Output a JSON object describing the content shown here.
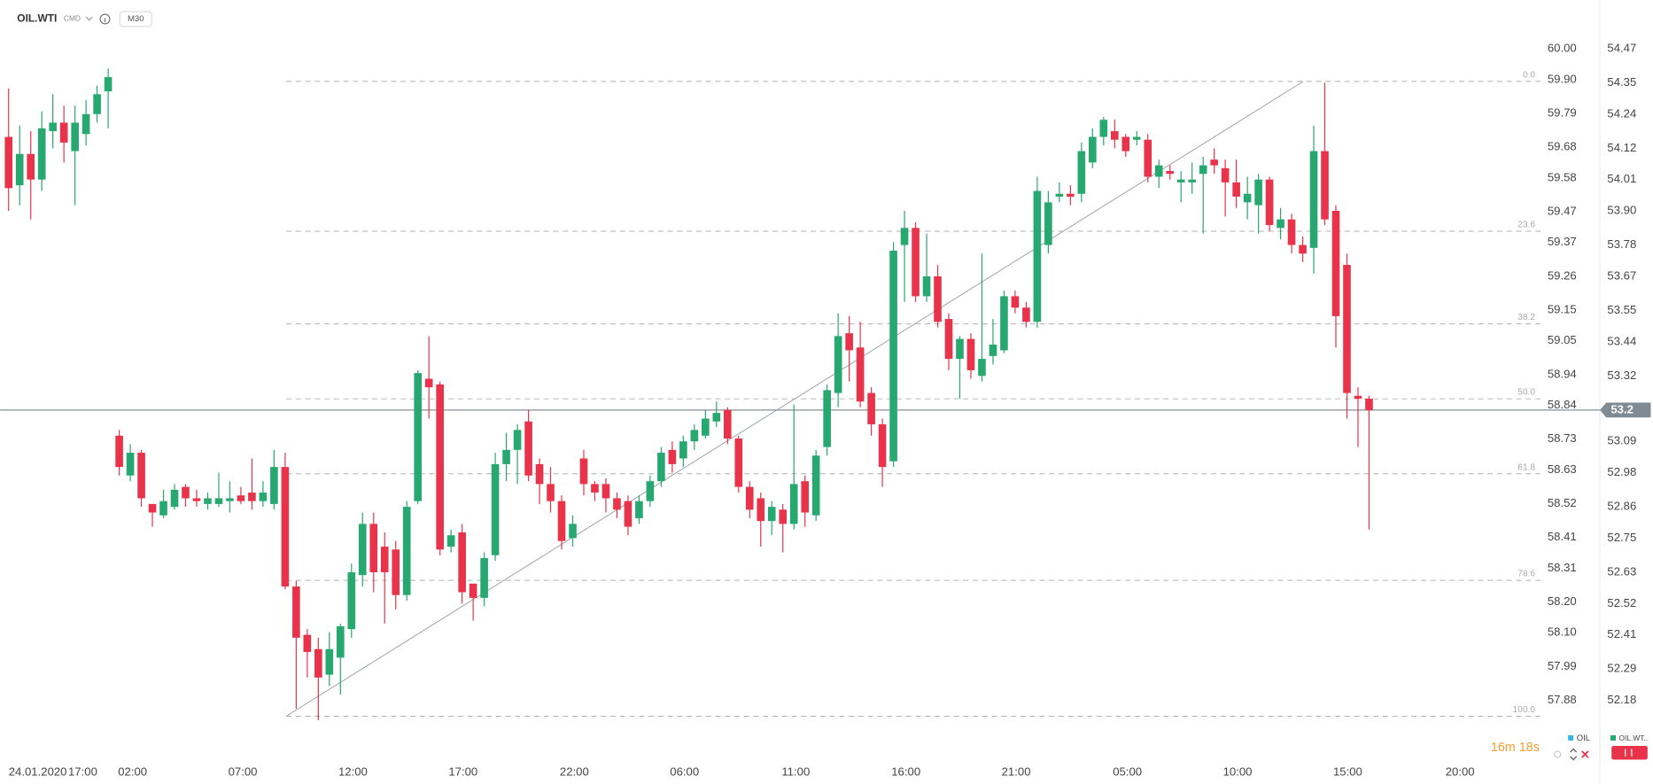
{
  "header": {
    "symbol": "OIL.WTI",
    "market": "CMD",
    "interval": "M30"
  },
  "timer": "16m 18s",
  "legend": [
    {
      "name": "OIL",
      "color": "#35b5e5"
    },
    {
      "name": "OIL.WT..",
      "color": "#26a870"
    }
  ],
  "chart_data": {
    "type": "candlestick",
    "series": [
      {
        "name": "OIL.WTI",
        "up_color": "#26a870",
        "down_color": "#e8334a",
        "open": [
          54.16,
          53.99,
          54.1,
          54.01,
          54.18,
          54.21,
          54.11,
          54.17,
          54.24,
          54.32,
          53.11,
          52.97,
          53.05,
          52.87,
          52.83,
          52.86,
          52.93,
          52.89,
          52.87,
          52.87,
          52.88,
          52.9,
          52.91,
          52.88,
          52.87,
          53.0,
          52.58,
          52.41,
          52.36,
          52.27,
          52.33,
          52.43,
          52.62,
          52.8,
          52.72,
          52.71,
          52.55,
          52.88,
          53.31,
          53.29,
          52.72,
          52.77,
          52.59,
          52.54,
          52.69,
          53.01,
          53.06,
          53.16,
          53.01,
          52.94,
          52.88,
          52.75,
          53.03,
          52.94,
          52.94,
          52.89,
          52.88,
          52.82,
          52.88,
          52.95,
          53.06,
          53.03,
          53.09,
          53.11,
          53.16,
          53.2,
          53.1,
          52.93,
          52.89,
          52.81,
          52.85,
          52.8,
          52.95,
          52.83,
          53.07,
          53.26,
          53.47,
          53.42,
          53.26,
          53.15,
          53.02,
          53.78,
          53.84,
          53.6,
          53.67,
          53.52,
          53.38,
          53.45,
          53.32,
          53.39,
          53.41,
          53.6,
          53.56,
          53.51,
          53.78,
          53.95,
          53.96,
          53.96,
          54.07,
          54.16,
          54.18,
          54.16,
          54.15,
          54.15,
          54.02,
          54.04,
          54.0,
          54.0,
          54.03,
          54.08,
          54.05,
          54.0,
          53.93,
          53.92,
          54.01,
          53.84,
          53.87,
          53.78,
          53.77,
          54.11,
          53.9,
          53.71,
          53.25,
          53.24
        ],
        "high": [
          54.33,
          54.2,
          54.18,
          54.25,
          54.31,
          54.27,
          54.27,
          54.29,
          54.34,
          54.4,
          53.13,
          53.08,
          53.06,
          52.87,
          52.92,
          52.94,
          52.94,
          52.92,
          52.91,
          52.98,
          52.95,
          52.93,
          53.03,
          52.95,
          53.06,
          53.05,
          52.6,
          52.43,
          52.4,
          52.42,
          52.45,
          52.66,
          52.84,
          52.84,
          52.77,
          52.74,
          52.88,
          53.34,
          53.46,
          53.3,
          52.78,
          52.8,
          52.59,
          52.7,
          53.05,
          53.12,
          53.15,
          53.2,
          53.03,
          53.0,
          52.9,
          52.83,
          53.06,
          52.95,
          52.96,
          52.91,
          52.9,
          52.9,
          52.97,
          53.07,
          53.09,
          53.11,
          53.15,
          53.2,
          53.23,
          53.21,
          53.11,
          52.95,
          52.91,
          52.88,
          52.87,
          53.22,
          52.97,
          53.06,
          53.29,
          53.54,
          53.53,
          53.51,
          53.28,
          53.17,
          53.79,
          53.9,
          53.86,
          53.82,
          53.71,
          53.54,
          53.46,
          53.47,
          53.75,
          53.52,
          53.62,
          53.62,
          53.58,
          54.02,
          53.97,
          54.0,
          53.99,
          54.14,
          54.19,
          54.23,
          54.22,
          54.17,
          54.18,
          54.17,
          54.08,
          54.06,
          54.04,
          54.07,
          54.09,
          54.12,
          54.08,
          54.08,
          54.02,
          54.03,
          54.02,
          53.91,
          53.89,
          53.81,
          54.2,
          54.35,
          53.92,
          53.75,
          53.28,
          53.25
        ],
        "low": [
          53.9,
          53.92,
          53.87,
          53.97,
          54.12,
          54.07,
          53.92,
          54.13,
          54.21,
          54.19,
          52.97,
          52.95,
          52.86,
          52.79,
          52.82,
          52.85,
          52.86,
          52.86,
          52.85,
          52.86,
          52.84,
          52.87,
          52.85,
          52.86,
          52.85,
          52.57,
          52.15,
          52.26,
          52.11,
          52.23,
          52.2,
          52.4,
          52.58,
          52.56,
          52.45,
          52.5,
          52.53,
          52.87,
          53.17,
          52.69,
          52.7,
          52.52,
          52.46,
          52.51,
          52.67,
          52.95,
          52.94,
          52.95,
          52.87,
          52.84,
          52.71,
          52.72,
          52.9,
          52.88,
          52.84,
          52.82,
          52.76,
          52.8,
          52.86,
          52.93,
          52.98,
          53.0,
          53.06,
          53.1,
          53.14,
          53.08,
          52.91,
          52.82,
          52.72,
          52.76,
          52.7,
          52.78,
          52.79,
          52.81,
          53.04,
          53.21,
          53.3,
          53.21,
          53.11,
          52.93,
          53.0,
          53.58,
          53.58,
          53.58,
          53.49,
          53.34,
          53.24,
          53.31,
          53.3,
          53.36,
          53.4,
          53.54,
          53.49,
          53.49,
          53.75,
          53.93,
          53.92,
          53.93,
          54.05,
          54.13,
          54.12,
          54.09,
          54.13,
          54.0,
          53.98,
          54.01,
          53.93,
          53.96,
          53.82,
          54.03,
          53.88,
          53.91,
          53.87,
          53.82,
          53.83,
          53.8,
          53.75,
          53.72,
          53.68,
          53.85,
          53.42,
          53.17,
          53.07,
          52.78
        ],
        "close": [
          53.98,
          54.1,
          54.01,
          54.19,
          54.21,
          54.14,
          54.21,
          54.24,
          54.31,
          54.37,
          53.0,
          53.05,
          52.89,
          52.84,
          52.88,
          52.92,
          52.89,
          52.88,
          52.89,
          52.89,
          52.89,
          52.88,
          52.88,
          52.91,
          53.0,
          52.58,
          52.4,
          52.35,
          52.26,
          52.36,
          52.44,
          52.63,
          52.8,
          52.63,
          52.63,
          52.55,
          52.86,
          53.33,
          53.28,
          52.71,
          52.76,
          52.56,
          52.54,
          52.68,
          53.01,
          53.06,
          53.13,
          52.97,
          52.94,
          52.88,
          52.74,
          52.8,
          52.94,
          52.91,
          52.89,
          52.85,
          52.79,
          52.88,
          52.95,
          53.05,
          53.01,
          53.09,
          53.13,
          53.17,
          53.19,
          53.1,
          52.93,
          52.85,
          52.81,
          52.86,
          52.8,
          52.94,
          52.84,
          53.04,
          53.27,
          53.46,
          53.41,
          53.23,
          53.15,
          53.0,
          53.76,
          53.84,
          53.6,
          53.67,
          53.51,
          53.38,
          53.45,
          53.34,
          53.38,
          53.43,
          53.6,
          53.56,
          53.51,
          53.97,
          53.93,
          53.96,
          53.95,
          54.11,
          54.16,
          54.22,
          54.15,
          54.11,
          54.16,
          54.02,
          54.06,
          54.03,
          54.01,
          54.01,
          54.06,
          54.06,
          54.0,
          53.95,
          53.96,
          54.01,
          53.85,
          53.87,
          53.78,
          53.75,
          54.11,
          53.87,
          53.53,
          53.26,
          53.24,
          53.2
        ]
      }
    ],
    "current_price": 53.2,
    "ylim": [
      51.979,
      54.641
    ],
    "yticks": [
      54.47,
      54.35,
      54.24,
      54.12,
      54.01,
      {
        "value": 53.9,
        "label": "53.90"
      },
      53.78,
      53.67,
      53.55,
      53.44,
      53.32,
      53.09,
      52.98,
      52.86,
      52.75,
      52.63,
      52.52,
      52.41,
      52.29,
      52.18
    ],
    "y2lim": [
      57.694,
      60.159
    ],
    "y2ticks": [
      {
        "value": 60,
        "label": "60.00"
      },
      {
        "value": 59.9,
        "label": "59.90"
      },
      59.79,
      59.68,
      59.58,
      59.47,
      59.37,
      59.26,
      59.15,
      59.05,
      58.94,
      58.84,
      58.73,
      58.63,
      58.52,
      58.41,
      58.31,
      {
        "value": 58.2,
        "label": "58.20"
      },
      {
        "value": 58.1,
        "label": "58.10"
      },
      57.99,
      57.88
    ],
    "date_label": "24.01.2020",
    "xtick_labels": [
      "17:00",
      "02:00",
      "07:00",
      "12:00",
      "17:00",
      "22:00",
      "06:00",
      "11:00",
      "16:00",
      "21:00",
      "05:00",
      "10:00",
      "15:00",
      "20:00"
    ],
    "fibonacci": {
      "high": 54.355,
      "low": 52.124,
      "levels": [
        {
          "value": 0,
          "label": "0.0"
        },
        23.6,
        38.2,
        {
          "value": 50,
          "label": "50.0"
        },
        61.8,
        78.6,
        {
          "value": 100,
          "label": "100.0"
        }
      ]
    }
  }
}
